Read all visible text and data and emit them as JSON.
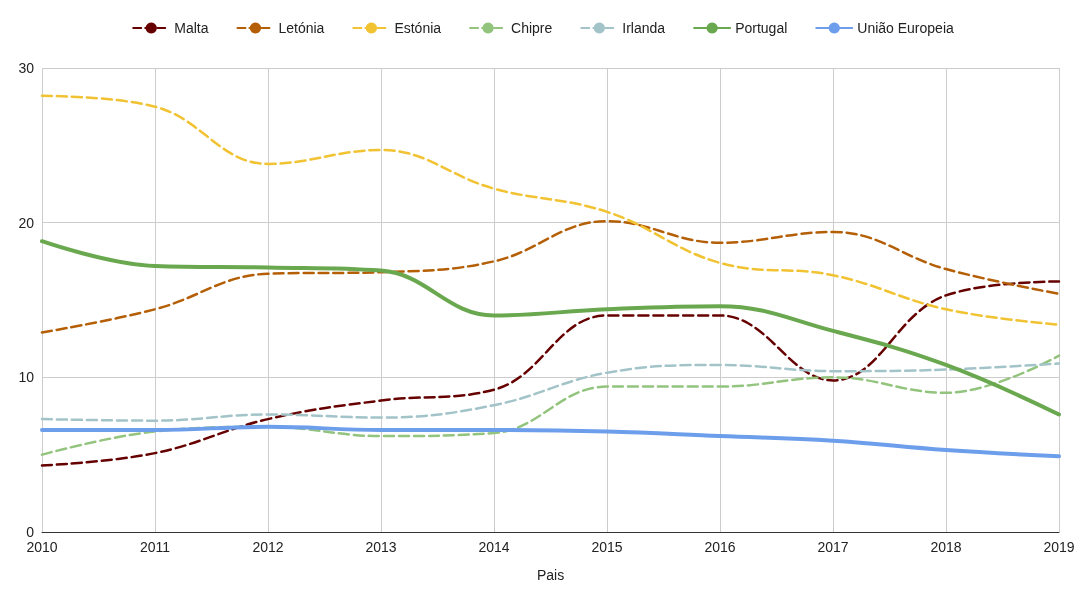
{
  "chart_data": {
    "type": "line",
    "xlabel": "Pais",
    "categories": [
      "2010",
      "2011",
      "2012",
      "2013",
      "2014",
      "2015",
      "2016",
      "2017",
      "2018",
      "2019"
    ],
    "series": [
      {
        "name": "Malta",
        "color": "#660000",
        "line_style": "dashed",
        "values": [
          4.3,
          5.1,
          7.3,
          8.5,
          9.2,
          14.0,
          14.0,
          9.8,
          15.3,
          16.2
        ]
      },
      {
        "name": "Letónia",
        "color": "#b45f06",
        "line_style": "dashed",
        "values": [
          12.9,
          14.4,
          16.7,
          16.8,
          17.5,
          20.1,
          18.7,
          19.4,
          17.0,
          15.4
        ]
      },
      {
        "name": "Estónia",
        "color": "#f1c232",
        "line_style": "dashed",
        "values": [
          28.2,
          27.5,
          23.8,
          24.7,
          22.2,
          20.7,
          17.4,
          16.6,
          14.4,
          13.4
        ]
      },
      {
        "name": "Chipre",
        "color": "#93c47d",
        "line_style": "dashed",
        "values": [
          5.0,
          6.5,
          6.8,
          6.2,
          6.4,
          9.4,
          9.4,
          10.0,
          9.0,
          11.4
        ]
      },
      {
        "name": "Irlanda",
        "color": "#a2c4c9",
        "line_style": "dashed",
        "values": [
          7.3,
          7.2,
          7.6,
          7.4,
          8.2,
          10.3,
          10.8,
          10.4,
          10.5,
          10.9
        ]
      },
      {
        "name": "Portugal",
        "color": "#6aa84f",
        "line_style": "solid",
        "values": [
          18.8,
          17.2,
          17.1,
          16.9,
          14.0,
          14.4,
          14.6,
          13.0,
          10.8,
          7.6
        ]
      },
      {
        "name": "União Europeia",
        "color": "#6d9eeb",
        "line_style": "solid",
        "values": [
          6.6,
          6.6,
          6.8,
          6.6,
          6.6,
          6.5,
          6.2,
          5.9,
          5.3,
          4.9
        ]
      }
    ],
    "ylim": [
      0,
      30
    ],
    "yticks": [
      0,
      10,
      20,
      30
    ],
    "grid": true,
    "legend": "top",
    "marker": "none"
  }
}
